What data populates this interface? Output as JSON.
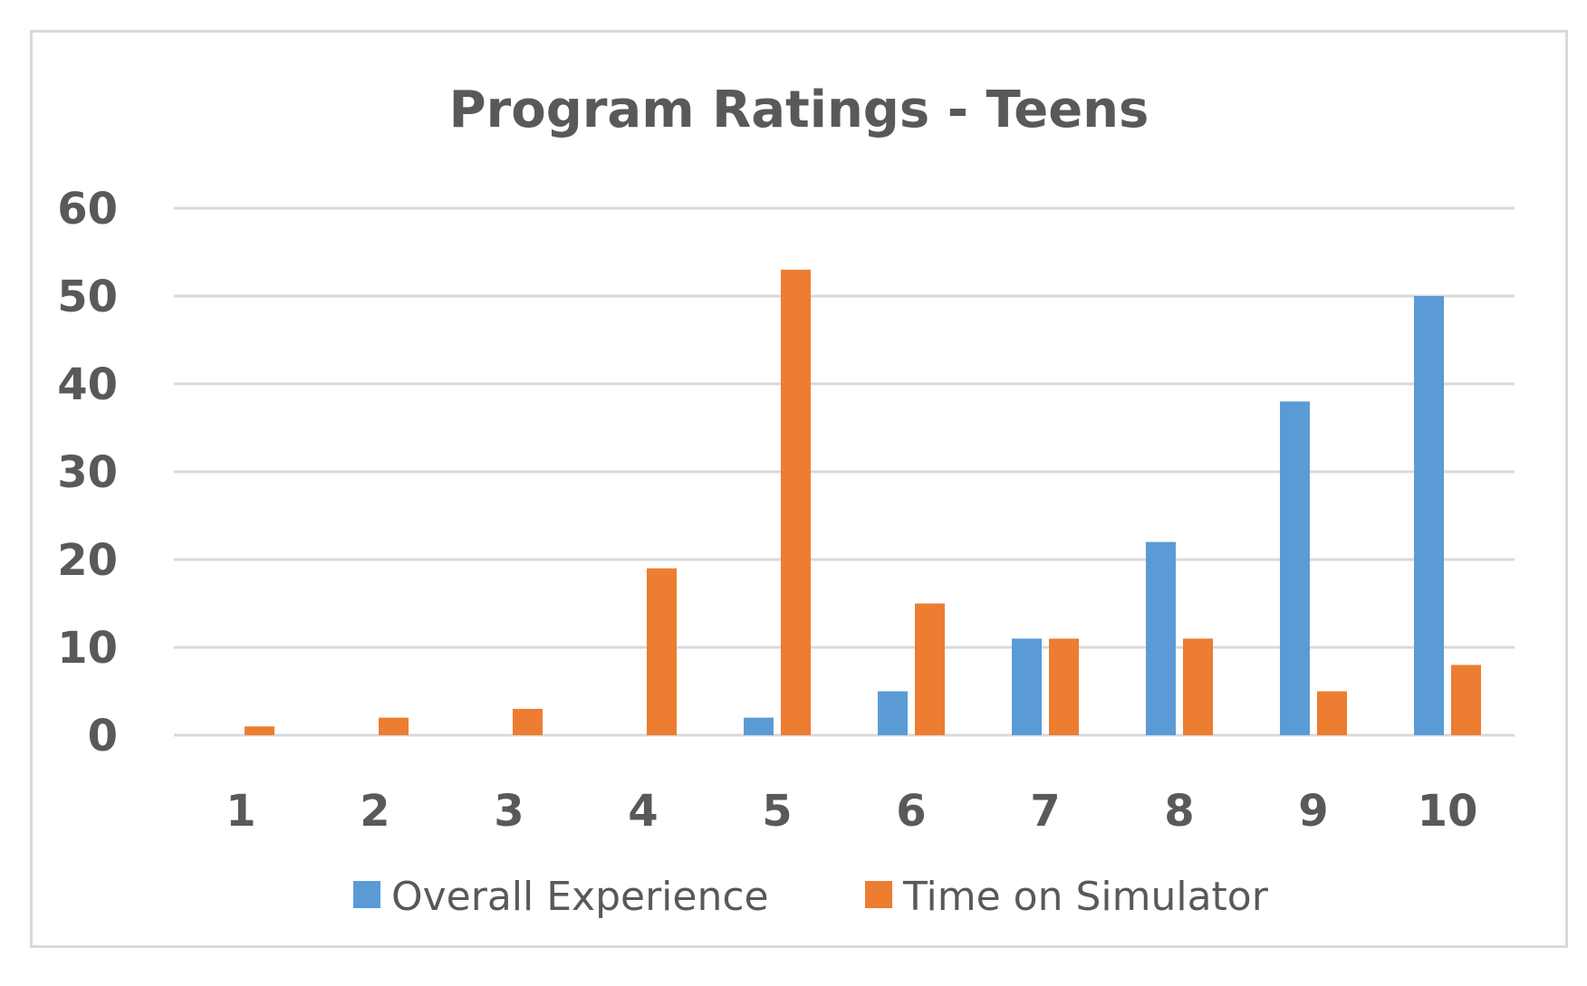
{
  "chart_data": {
    "type": "bar",
    "title": "Program Ratings - Teens",
    "xlabel": "",
    "ylabel": "",
    "categories": [
      "1",
      "2",
      "3",
      "4",
      "5",
      "6",
      "7",
      "8",
      "9",
      "10"
    ],
    "series": [
      {
        "name": "Overall Experience",
        "color": "#5b9bd5",
        "values": [
          0,
          0,
          0,
          0,
          2,
          5,
          11,
          22,
          38,
          50
        ]
      },
      {
        "name": "Time on Simulator",
        "color": "#ed7d31",
        "values": [
          1,
          2,
          3,
          19,
          53,
          15,
          11,
          11,
          5,
          8
        ]
      }
    ],
    "ylim": [
      0,
      60
    ],
    "yticks": [
      0,
      10,
      20,
      30,
      40,
      50,
      60
    ],
    "grid": true,
    "gridColor": "#d9d9d9",
    "legend_position": "bottom"
  }
}
